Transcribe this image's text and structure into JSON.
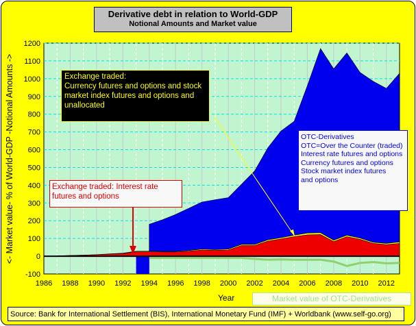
{
  "chart_data": {
    "type": "area",
    "title": "Derivative debt in relation to World-GDP",
    "subtitle": "Notional Amounts and Market value",
    "xlabel": "Year",
    "ylabel": "<- Market value- % of World-GDP -Notional Amounts ->",
    "xlim": [
      1986,
      2013
    ],
    "ylim": [
      -100,
      1200
    ],
    "x_ticks": [
      "1986",
      "1988",
      "1990",
      "1992",
      "1994",
      "1996",
      "1998",
      "2000",
      "2002",
      "2004",
      "2006",
      "2008",
      "2010",
      "2012"
    ],
    "y_ticks": [
      "1200",
      "1100",
      "1000",
      "900",
      "800",
      "700",
      "600",
      "500",
      "400",
      "300",
      "200",
      "100",
      "0",
      "-100"
    ],
    "grid": true,
    "series": [
      {
        "name": "OTC-Derivatives",
        "color": "#0000ee",
        "x": [
          1994,
          1995,
          1996,
          1997,
          1998,
          1999,
          2000,
          2001,
          2002,
          2003,
          2004,
          2005,
          2006,
          2007,
          2008,
          2009,
          2010,
          2011,
          2012,
          2013
        ],
        "values": [
          180,
          205,
          235,
          270,
          305,
          318,
          330,
          405,
          480,
          610,
          705,
          760,
          960,
          1170,
          1055,
          1145,
          1035,
          985,
          945,
          1030
        ]
      },
      {
        "name": "Exchange traded: Currency futures and options and stock market index futures and options and unallocated",
        "color": "#ffff00",
        "x": [
          1987,
          1988,
          1989,
          1990,
          1991,
          1992,
          1993,
          1994,
          1995,
          1996,
          1997,
          1998,
          1999,
          2000,
          2001,
          2002,
          2003,
          2004,
          2005,
          2006,
          2007,
          2008,
          2009,
          2010,
          2011,
          2012,
          2013
        ],
        "values": [
          2,
          4,
          6,
          9,
          13,
          17,
          28,
          28,
          27,
          27,
          32,
          40,
          37,
          40,
          66,
          66,
          92,
          104,
          118,
          130,
          132,
          90,
          118,
          102,
          78,
          72,
          80
        ]
      },
      {
        "name": "Exchange traded: Interest rate futures and options",
        "color": "#ee0000",
        "x": [
          1987,
          1988,
          1989,
          1990,
          1991,
          1992,
          1993,
          1994,
          1995,
          1996,
          1997,
          1998,
          1999,
          2000,
          2001,
          2002,
          2003,
          2004,
          2005,
          2006,
          2007,
          2008,
          2009,
          2010,
          2011,
          2012,
          2013
        ],
        "values": [
          2,
          4,
          6,
          8,
          12,
          15,
          25,
          25,
          24,
          24,
          28,
          35,
          33,
          35,
          60,
          60,
          85,
          97,
          110,
          120,
          122,
          82,
          110,
          95,
          72,
          65,
          72
        ]
      },
      {
        "name": "Market value of OTC-Derivatives",
        "color": "#90d070",
        "x": [
          1994,
          1995,
          1996,
          1997,
          1998,
          1999,
          2000,
          2001,
          2002,
          2003,
          2004,
          2005,
          2006,
          2007,
          2008,
          2009,
          2010,
          2011,
          2012,
          2013
        ],
        "values": [
          -10,
          -10,
          -10,
          -10,
          -10,
          -10,
          -10,
          -10,
          -15,
          -20,
          -18,
          -20,
          -20,
          -20,
          -30,
          -55,
          -38,
          -33,
          -40,
          -38
        ]
      }
    ],
    "annotations": {
      "exchange_other": [
        "Exchange traded:",
        "Currency futures and options and stock",
        "market index futures and options and",
        "unallocated"
      ],
      "exchange_ir": [
        "Exchange traded: Interest rate",
        "futures and options"
      ],
      "otc": [
        "OTC-Derivatives",
        "OTC=Over the Counter (traded)",
        "Interest rate futures and options",
        "Currency futures and options",
        "Stock market index futures",
        "and options"
      ]
    },
    "market_value_legend": "Market value of OTC-Derivatives",
    "source": "Source: Bank for International Settlement (BIS),  International Monetary Fund (IMF) + Worldbank   (www.self-go.org)",
    "colors": {
      "background": "#ffff00",
      "plot": "#c0f5d0",
      "grid": "#00e0f0"
    }
  }
}
